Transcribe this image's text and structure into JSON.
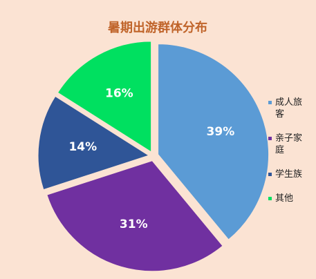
{
  "chart_data": {
    "type": "pie",
    "title": "暑期出游群体分布",
    "categories": [
      "成人旅客",
      "亲子家庭",
      "学生族",
      "其他"
    ],
    "values": [
      39,
      31,
      14,
      16
    ],
    "value_labels": [
      "39%",
      "31%",
      "14%",
      "16%"
    ],
    "colors": [
      "#5b9bd5",
      "#7030a0",
      "#2f5597",
      "#00e060"
    ],
    "legend": "right"
  }
}
